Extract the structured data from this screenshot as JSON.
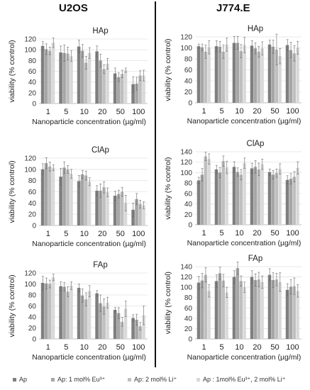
{
  "columns": [
    "U2OS",
    "J774.E"
  ],
  "colors": [
    "#7f7f7f",
    "#a6a6a6",
    "#bfbfbf",
    "#d9d9d9"
  ],
  "legend": [
    "Ap",
    "Ap: 1 mol% Eu³⁺",
    "Ap: 2 mol% Li⁺",
    "Ap : 1mol% Eu³⁺, 2 mol% Li⁺"
  ],
  "chart_data": [
    {
      "type": "bar",
      "title": "HAp",
      "column": "U2OS",
      "xlabel": "Nanoparticle concentration (µg/ml)",
      "ylabel": "viability (% control)",
      "categories": [
        "1",
        "5",
        "10",
        "20",
        "50",
        "100"
      ],
      "ylim": [
        0,
        120
      ],
      "yticks": [
        0,
        20,
        40,
        60,
        80,
        100,
        120
      ],
      "series": [
        {
          "name": "Ap",
          "values": [
            107,
            95,
            106,
            97,
            56,
            36
          ],
          "errors": [
            8,
            12,
            12,
            10,
            10,
            14
          ]
        },
        {
          "name": "Ap: 1 mol% Eu³⁺",
          "values": [
            101,
            94,
            98,
            80,
            49,
            37
          ],
          "errors": [
            10,
            15,
            12,
            12,
            8,
            12
          ]
        },
        {
          "name": "Ap: 2 mol% Li⁺",
          "values": [
            98,
            93,
            76,
            64,
            55,
            52
          ],
          "errors": [
            7,
            12,
            12,
            8,
            7,
            9
          ]
        },
        {
          "name": "Ap : 1mol% Eu³⁺, 2 mol% Li⁺",
          "values": [
            113,
            88,
            94,
            74,
            62,
            52
          ],
          "errors": [
            9,
            10,
            10,
            10,
            4,
            10
          ]
        }
      ]
    },
    {
      "type": "bar",
      "title": "ClAp",
      "column": "U2OS",
      "xlabel": "Nanoparticle concentration (µg/ml)",
      "ylabel": "viability (% control)",
      "categories": [
        "1",
        "5",
        "10",
        "20",
        "50",
        "100"
      ],
      "ylim": [
        0,
        120
      ],
      "yticks": [
        0,
        20,
        40,
        60,
        80,
        100,
        120
      ],
      "series": [
        {
          "name": "Ap",
          "values": [
            100,
            87,
            79,
            62,
            53,
            28
          ],
          "errors": [
            10,
            15,
            10,
            9,
            8,
            12
          ]
        },
        {
          "name": "Ap: 1 mol% Eu³⁺",
          "values": [
            111,
            103,
            91,
            62,
            56,
            47
          ],
          "errors": [
            10,
            10,
            7,
            12,
            7,
            10
          ]
        },
        {
          "name": "Ap: 2 mol% Li⁺",
          "values": [
            105,
            100,
            89,
            68,
            60,
            38
          ],
          "errors": [
            8,
            7,
            8,
            10,
            8,
            7
          ]
        },
        {
          "name": "Ap : 1mol% Eu³⁺, 2 mol% Li⁺",
          "values": [
            103,
            92,
            78,
            59,
            40,
            36
          ],
          "errors": [
            5,
            8,
            7,
            8,
            14,
            6
          ]
        }
      ]
    },
    {
      "type": "bar",
      "title": "FAp",
      "column": "U2OS",
      "xlabel": "Nanoparticle concentration (µg/ml)",
      "ylabel": "viability (% control)",
      "categories": [
        "1",
        "5",
        "10",
        "20",
        "50",
        "100"
      ],
      "ylim": [
        0,
        120
      ],
      "yticks": [
        0,
        20,
        40,
        60,
        80,
        100,
        120
      ],
      "series": [
        {
          "name": "Ap",
          "values": [
            102,
            96,
            93,
            83,
            53,
            38
          ],
          "errors": [
            12,
            8,
            7,
            5,
            4,
            6
          ]
        },
        {
          "name": "Ap: 1 mol% Eu³⁺",
          "values": [
            101,
            95,
            79,
            65,
            47,
            35
          ],
          "errors": [
            10,
            8,
            12,
            15,
            10,
            10
          ]
        },
        {
          "name": "Ap: 2 mol% Li⁺",
          "values": [
            100,
            86,
            72,
            59,
            31,
            23
          ],
          "errors": [
            7,
            9,
            12,
            14,
            8,
            7
          ]
        },
        {
          "name": "Ap : 1mol% Eu³⁺, 2 mol% Li⁺",
          "values": [
            112,
            97,
            87,
            66,
            55,
            43
          ],
          "errors": [
            6,
            7,
            10,
            10,
            14,
            17
          ]
        }
      ]
    },
    {
      "type": "bar",
      "title": "HAp",
      "column": "J774.E",
      "xlabel": "Nanoparticle concentration (µg/ml)",
      "ylabel": "viability (% control)",
      "categories": [
        "1",
        "5",
        "10",
        "20",
        "50",
        "100"
      ],
      "ylim": [
        0,
        120
      ],
      "yticks": [
        0,
        20,
        40,
        60,
        80,
        100,
        120
      ],
      "series": [
        {
          "name": "Ap",
          "values": [
            103,
            103,
            109,
            104,
            106,
            105
          ],
          "errors": [
            4,
            10,
            12,
            9,
            8,
            10
          ]
        },
        {
          "name": "Ap: 1 mol% Eu³⁺",
          "values": [
            101,
            102,
            109,
            99,
            102,
            96
          ],
          "errors": [
            6,
            10,
            12,
            10,
            12,
            14
          ]
        },
        {
          "name": "Ap: 2 mol% Li⁺",
          "values": [
            93,
            93,
            94,
            93,
            97,
            90
          ],
          "errors": [
            12,
            12,
            12,
            10,
            28,
            14
          ]
        },
        {
          "name": "Ap : 1mol% Eu³⁺, 2 mol% Li⁺",
          "values": [
            101,
            106,
            105,
            99,
            85,
            100
          ],
          "errors": [
            12,
            12,
            14,
            12,
            14,
            12
          ]
        }
      ]
    },
    {
      "type": "bar",
      "title": "ClAp",
      "column": "J774.E",
      "xlabel": "Nanoparticle concentration (µg/ml)",
      "ylabel": "viability (% control)",
      "categories": [
        "1",
        "5",
        "10",
        "20",
        "50",
        "100"
      ],
      "ylim": [
        0,
        140
      ],
      "yticks": [
        0,
        20,
        40,
        60,
        80,
        100,
        120,
        140
      ],
      "series": [
        {
          "name": "Ap",
          "values": [
            85,
            106,
            111,
            108,
            101,
            86
          ],
          "errors": [
            6,
            8,
            10,
            10,
            6,
            8
          ]
        },
        {
          "name": "Ap: 1 mol% Eu³⁺",
          "values": [
            96,
            100,
            101,
            111,
            96,
            88
          ],
          "errors": [
            12,
            10,
            8,
            12,
            8,
            10
          ]
        },
        {
          "name": "Ap: 2 mol% Li⁺",
          "values": [
            131,
            122,
            96,
            106,
            99,
            92
          ],
          "errors": [
            8,
            10,
            10,
            12,
            8,
            10
          ]
        },
        {
          "name": "Ap : 1mol% Eu³⁺, 2 mol% Li⁺",
          "values": [
            126,
            110,
            118,
            116,
            107,
            109
          ],
          "errors": [
            10,
            12,
            10,
            10,
            10,
            12
          ]
        }
      ]
    },
    {
      "type": "bar",
      "title": "FAp",
      "column": "J774.E",
      "xlabel": "Nanoparticle concentration (µg/ml)",
      "ylabel": "viability (% control)",
      "categories": [
        "1",
        "5",
        "10",
        "20",
        "50",
        "100"
      ],
      "ylim": [
        0,
        140
      ],
      "yticks": [
        0,
        20,
        40,
        60,
        80,
        100,
        120,
        140
      ],
      "series": [
        {
          "name": "Ap",
          "values": [
            109,
            112,
            120,
            120,
            124,
            95
          ],
          "errors": [
            12,
            12,
            12,
            12,
            12,
            12
          ]
        },
        {
          "name": "Ap: 1 mol% Eu³⁺",
          "values": [
            113,
            127,
            137,
            114,
            114,
            101
          ],
          "errors": [
            14,
            12,
            12,
            12,
            14,
            14
          ]
        },
        {
          "name": "Ap: 2 mol% Li⁺",
          "values": [
            124,
            113,
            112,
            115,
            115,
            102
          ],
          "errors": [
            14,
            12,
            10,
            14,
            12,
            16
          ]
        },
        {
          "name": "Ap : 1mol% Eu³⁺, 2 mol% Li⁺",
          "values": [
            93,
            90,
            100,
            110,
            110,
            93
          ],
          "errors": [
            12,
            10,
            10,
            12,
            18,
            12
          ]
        }
      ]
    }
  ]
}
